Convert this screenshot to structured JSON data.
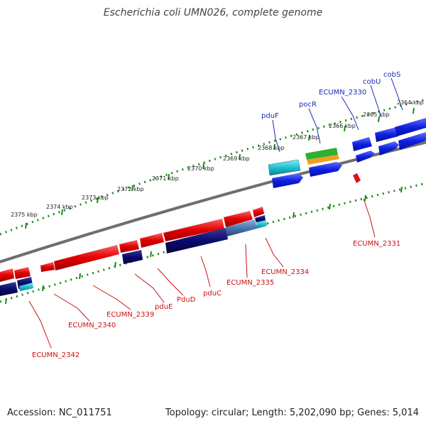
{
  "title": "Escherichia coli UMN026, complete genome",
  "footer": {
    "accession": "Accession: NC_011751",
    "topology": "Topology: circular; Length: 5,202,090 bp; Genes: 5,014"
  },
  "scale_labels": [
    "2364 kbp",
    "2365 kbp",
    "2366 kbp",
    "2367 kbp",
    "2368 kbp",
    "2369 kbp",
    "2370 kbp",
    "2371 kbp",
    "2372 kbp",
    "2373 kbp",
    "2374 kbp",
    "2375 kbp"
  ],
  "gene_labels_top": [
    "pduF",
    "pocR",
    "ECUMN_2330",
    "cobU",
    "cobS"
  ],
  "gene_labels_bottom": [
    "ECUMN_2331",
    "ECUMN_2334",
    "ECUMN_2335",
    "pduC",
    "PduD",
    "pduE",
    "ECUMN_2339",
    "ECUMN_2340",
    "ECUMN_2342"
  ],
  "colors": {
    "backbone": "#7a7a7a",
    "tick": "#1a8a1a",
    "forward_cds": "#1020e0",
    "reverse_cds": "#e01010",
    "dark_feature": "#0a0a6e",
    "cyan_feature": "#20c0d0",
    "steel_feature": "#4a78b0",
    "green_feature": "#30b030",
    "orange_feature": "#f0a020",
    "label_blue": "#1b2bb5",
    "label_red": "#cc1010"
  }
}
